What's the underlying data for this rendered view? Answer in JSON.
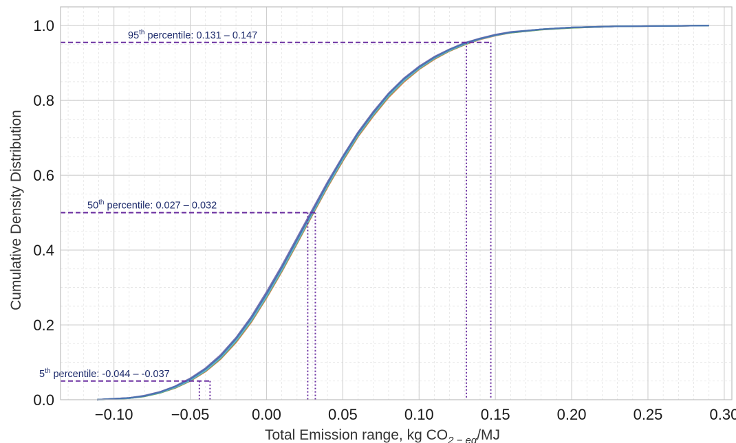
{
  "chart_data": {
    "type": "line",
    "title": "",
    "xlabel": "Total Emission range, kg CO",
    "xlabel_sub": "2 − eq",
    "xlabel_suffix": "/MJ",
    "ylabel": "Cumulative Density Distribution",
    "xlim": [
      -0.135,
      0.305
    ],
    "ylim": [
      0.0,
      1.05
    ],
    "x_ticks": [
      -0.1,
      -0.05,
      0.0,
      0.05,
      0.1,
      0.15,
      0.2,
      0.25,
      0.3
    ],
    "x_tick_labels": [
      "−0.10",
      "−0.05",
      "0.00",
      "0.05",
      "0.10",
      "0.15",
      "0.20",
      "0.25",
      "0.30"
    ],
    "y_ticks": [
      0.0,
      0.2,
      0.4,
      0.6,
      0.8,
      1.0
    ],
    "y_tick_labels": [
      "0.0",
      "0.2",
      "0.4",
      "0.6",
      "0.8",
      "1.0"
    ],
    "grid": true,
    "minor_grid": true,
    "legend": "none",
    "series": [
      {
        "color": "#c44e52",
        "x": [
          -0.111,
          -0.09,
          -0.08,
          -0.07,
          -0.06,
          -0.05,
          -0.04,
          -0.03,
          -0.02,
          -0.01,
          0.0,
          0.01,
          0.02,
          0.03,
          0.04,
          0.05,
          0.06,
          0.07,
          0.08,
          0.09,
          0.1,
          0.11,
          0.12,
          0.13,
          0.14,
          0.15,
          0.16,
          0.18,
          0.2,
          0.23,
          0.26,
          0.29
        ],
        "y": [
          0.0,
          0.005,
          0.01,
          0.02,
          0.034,
          0.054,
          0.08,
          0.115,
          0.16,
          0.215,
          0.28,
          0.35,
          0.425,
          0.5,
          0.575,
          0.645,
          0.71,
          0.765,
          0.815,
          0.855,
          0.888,
          0.914,
          0.935,
          0.952,
          0.965,
          0.975,
          0.982,
          0.99,
          0.995,
          0.998,
          0.999,
          1.0
        ]
      },
      {
        "color": "#dd8452",
        "x": [
          -0.111,
          -0.09,
          -0.08,
          -0.07,
          -0.06,
          -0.05,
          -0.04,
          -0.03,
          -0.02,
          -0.01,
          0.0,
          0.01,
          0.02,
          0.03,
          0.04,
          0.05,
          0.06,
          0.07,
          0.08,
          0.09,
          0.1,
          0.11,
          0.12,
          0.13,
          0.14,
          0.15,
          0.16,
          0.18,
          0.2,
          0.23,
          0.26,
          0.29
        ],
        "y": [
          0.0,
          0.004,
          0.009,
          0.018,
          0.031,
          0.05,
          0.075,
          0.109,
          0.153,
          0.207,
          0.272,
          0.342,
          0.417,
          0.493,
          0.568,
          0.638,
          0.703,
          0.758,
          0.808,
          0.849,
          0.883,
          0.91,
          0.932,
          0.949,
          0.963,
          0.973,
          0.981,
          0.989,
          0.994,
          0.998,
          0.999,
          1.0
        ]
      },
      {
        "color": "#8172b3",
        "x": [
          -0.111,
          -0.09,
          -0.08,
          -0.07,
          -0.06,
          -0.05,
          -0.04,
          -0.03,
          -0.02,
          -0.01,
          0.0,
          0.01,
          0.02,
          0.03,
          0.04,
          0.05,
          0.06,
          0.07,
          0.08,
          0.09,
          0.1,
          0.11,
          0.12,
          0.13,
          0.14,
          0.15,
          0.16,
          0.18,
          0.2,
          0.23,
          0.26,
          0.29
        ],
        "y": [
          0.0,
          0.005,
          0.011,
          0.021,
          0.036,
          0.057,
          0.084,
          0.12,
          0.166,
          0.222,
          0.288,
          0.358,
          0.433,
          0.508,
          0.582,
          0.651,
          0.715,
          0.77,
          0.819,
          0.859,
          0.891,
          0.917,
          0.937,
          0.954,
          0.966,
          0.976,
          0.983,
          0.99,
          0.995,
          0.998,
          0.999,
          1.0
        ]
      },
      {
        "color": "#55a868",
        "x": [
          -0.111,
          -0.09,
          -0.08,
          -0.07,
          -0.06,
          -0.05,
          -0.04,
          -0.03,
          -0.02,
          -0.01,
          0.0,
          0.01,
          0.02,
          0.03,
          0.04,
          0.05,
          0.06,
          0.07,
          0.08,
          0.09,
          0.1,
          0.11,
          0.12,
          0.13,
          0.14,
          0.15,
          0.16,
          0.18,
          0.2,
          0.23,
          0.26,
          0.29
        ],
        "y": [
          0.0,
          0.004,
          0.009,
          0.018,
          0.032,
          0.051,
          0.077,
          0.111,
          0.156,
          0.21,
          0.275,
          0.345,
          0.42,
          0.496,
          0.571,
          0.641,
          0.706,
          0.761,
          0.811,
          0.852,
          0.885,
          0.912,
          0.933,
          0.95,
          0.964,
          0.974,
          0.981,
          0.989,
          0.994,
          0.998,
          0.999,
          1.0
        ]
      },
      {
        "color": "#64b5cd",
        "x": [
          -0.111,
          -0.09,
          -0.08,
          -0.07,
          -0.06,
          -0.05,
          -0.04,
          -0.03,
          -0.02,
          -0.01,
          0.0,
          0.01,
          0.02,
          0.03,
          0.04,
          0.05,
          0.06,
          0.07,
          0.08,
          0.09,
          0.1,
          0.11,
          0.12,
          0.13,
          0.14,
          0.15,
          0.16,
          0.18,
          0.2,
          0.23,
          0.26,
          0.29
        ],
        "y": [
          0.0,
          0.004,
          0.01,
          0.019,
          0.033,
          0.052,
          0.078,
          0.113,
          0.158,
          0.212,
          0.277,
          0.347,
          0.422,
          0.498,
          0.573,
          0.643,
          0.708,
          0.763,
          0.813,
          0.853,
          0.886,
          0.913,
          0.934,
          0.951,
          0.964,
          0.974,
          0.982,
          0.99,
          0.995,
          0.998,
          0.999,
          1.0
        ]
      },
      {
        "color": "#4c72b0",
        "x": [
          -0.111,
          -0.09,
          -0.08,
          -0.07,
          -0.06,
          -0.05,
          -0.04,
          -0.03,
          -0.02,
          -0.01,
          0.0,
          0.01,
          0.02,
          0.03,
          0.04,
          0.05,
          0.06,
          0.07,
          0.08,
          0.09,
          0.1,
          0.11,
          0.12,
          0.13,
          0.14,
          0.15,
          0.16,
          0.18,
          0.2,
          0.23,
          0.26,
          0.29
        ],
        "y": [
          0.0,
          0.005,
          0.01,
          0.02,
          0.035,
          0.055,
          0.082,
          0.117,
          0.163,
          0.218,
          0.283,
          0.353,
          0.428,
          0.503,
          0.578,
          0.648,
          0.712,
          0.767,
          0.817,
          0.857,
          0.889,
          0.915,
          0.936,
          0.953,
          0.965,
          0.975,
          0.982,
          0.99,
          0.995,
          0.998,
          0.999,
          1.0
        ]
      }
    ],
    "percentiles": [
      {
        "label_sup": "th",
        "prefix": "95",
        "text": " percentile: 0.131 – 0.147",
        "y": 0.955,
        "x_low": 0.131,
        "x_high": 0.147
      },
      {
        "label_sup": "th",
        "prefix": "50",
        "text": " percentile: 0.027 – 0.032",
        "y": 0.5,
        "x_low": 0.027,
        "x_high": 0.032
      },
      {
        "label_sup": "th",
        "prefix": "5",
        "text": " percentile: -0.044 – -0.037",
        "y": 0.05,
        "x_low": -0.044,
        "x_high": -0.037
      }
    ],
    "colors": {
      "percentile_line": "#6a2fa0",
      "annotation_text": "#1c2a6b",
      "grid": "#cfcfcf",
      "minor_grid": "#e4e4e4",
      "frame": "#bdbdbd"
    }
  }
}
